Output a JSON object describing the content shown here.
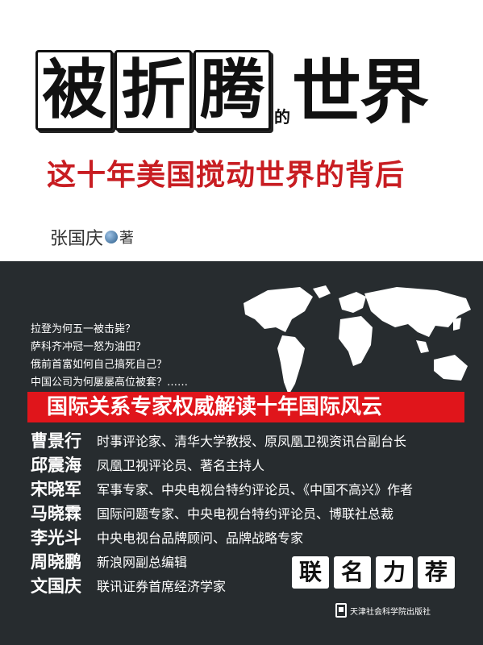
{
  "cover": {
    "title_chars": [
      "被",
      "折",
      "腾"
    ],
    "title_de": "的",
    "title_end": "世界",
    "subtitle": "这十年美国搅动世界的背后",
    "author": "张国庆",
    "author_suffix": "著"
  },
  "questions": [
    "拉登为何五一被击毙？",
    "萨科齐冲冠一怒为油田？",
    "俄前首富如何自己搞死自己？",
    "中国公司为何屡屡高位被套？……"
  ],
  "banner": "国际关系专家权威解读十年国际风云",
  "endorsers": [
    {
      "name": "曹景行",
      "desc": "时事评论家、清华大学教授、原凤凰卫视资讯台副台长"
    },
    {
      "name": "邱震海",
      "desc": "凤凰卫视评论员、著名主持人"
    },
    {
      "name": "宋晓军",
      "desc": "军事专家、中央电视台特约评论员、《中国不高兴》作者"
    },
    {
      "name": "马晓霖",
      "desc": "国际问题专家、中央电视台特约评论员、博联社总裁"
    },
    {
      "name": "李光斗",
      "desc": "中央电视台品牌顾问、品牌战略专家"
    },
    {
      "name": "周晓鹏",
      "desc": "新浪网副总编辑"
    },
    {
      "name": "文国庆",
      "desc": "联讯证券首席经济学家"
    }
  ],
  "recommend": [
    "联",
    "名",
    "力",
    "荐"
  ],
  "publisher": "天津社会科学院出版社",
  "colors": {
    "accent_red": "#e0151b",
    "subtitle_red": "#c81d22",
    "dark_bg": "#272c2f"
  },
  "icons": [
    "globe-icon",
    "world-map",
    "publisher-logo-icon"
  ]
}
